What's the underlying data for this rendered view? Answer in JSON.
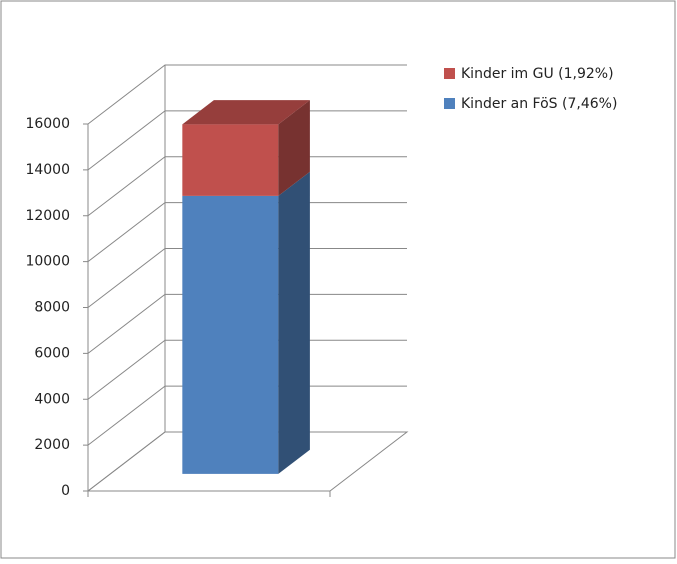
{
  "chart_data": {
    "type": "bar3d-stacked",
    "series": [
      {
        "name": "Kinder an FöS (7,46%)",
        "color": "#4f81bd",
        "values": [
          12120
        ]
      },
      {
        "name": "Kinder im GU (1,92%)",
        "color": "#c0504d",
        "values": [
          3120
        ]
      }
    ],
    "ylim": [
      0,
      16000
    ],
    "yticks": [
      0,
      2000,
      4000,
      6000,
      8000,
      10000,
      12000,
      14000,
      16000
    ],
    "grid": true,
    "legend": "right"
  }
}
